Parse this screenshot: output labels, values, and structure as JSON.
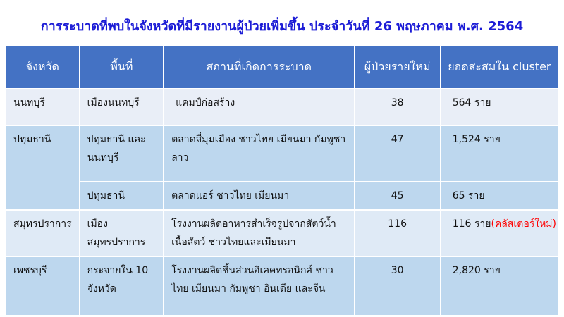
{
  "title": "การระบาดที่พบในจังหวัดที่มีรายงานผู้ป่วยเพิ่มขึ้น ประจำวันที่ 26 พฤษภาคม พ.ศ. 2564",
  "headers": [
    "จังหวัด",
    "พื้นที่",
    "สถานที่เกิดการระบาด",
    "ผู้ป่วยรายใหม่",
    "ยอดสะสมใน cluster"
  ],
  "rows": [
    {
      "province": "นนทบุรี",
      "area": "เมืองนนทบุรี",
      "place": "แคมป์ก่อสร้าง",
      "new": "38",
      "total": "564 ราย"
    },
    {
      "province": "ปทุมธานี",
      "area": "ปทุมธานี และ นนทบุรี",
      "place": "ตลาดสี่มุมเมือง ชาวไทย เมียนมา กัมพูชา ลาว",
      "new": "47",
      "total": "1,524 ราย"
    },
    {
      "area": "ปทุมธานี",
      "place": "ตลาดแอร์ ชาวไทย เมียนมา",
      "new": "45",
      "total": "65 ราย"
    },
    {
      "province": "สมุทรปราการ",
      "area": "เมืองสมุทรปราการ",
      "place": "โรงงานผลิตอาหารสำเร็จรูปจากสัตว์น้ำ เนื้อสัตว์ ชาวไทยและเมียนมา",
      "new": "116",
      "total": "116 ราย",
      "note": "(คลัสเตอร์ใหม่)"
    },
    {
      "province": "เพชรบุรี",
      "area": "กระจายใน 10 จังหวัด",
      "place": "โรงงานผลิตชิ้นส่วนอิเลคทรอนิกส์ ชาวไทย เมียนมา กัมพูชา อินเดีย และจีน",
      "new": "30",
      "total": "2,820 ราย"
    }
  ],
  "colors": {
    "header": "#4472c4",
    "title": "#1c1cd6",
    "note": "#ff0000"
  }
}
